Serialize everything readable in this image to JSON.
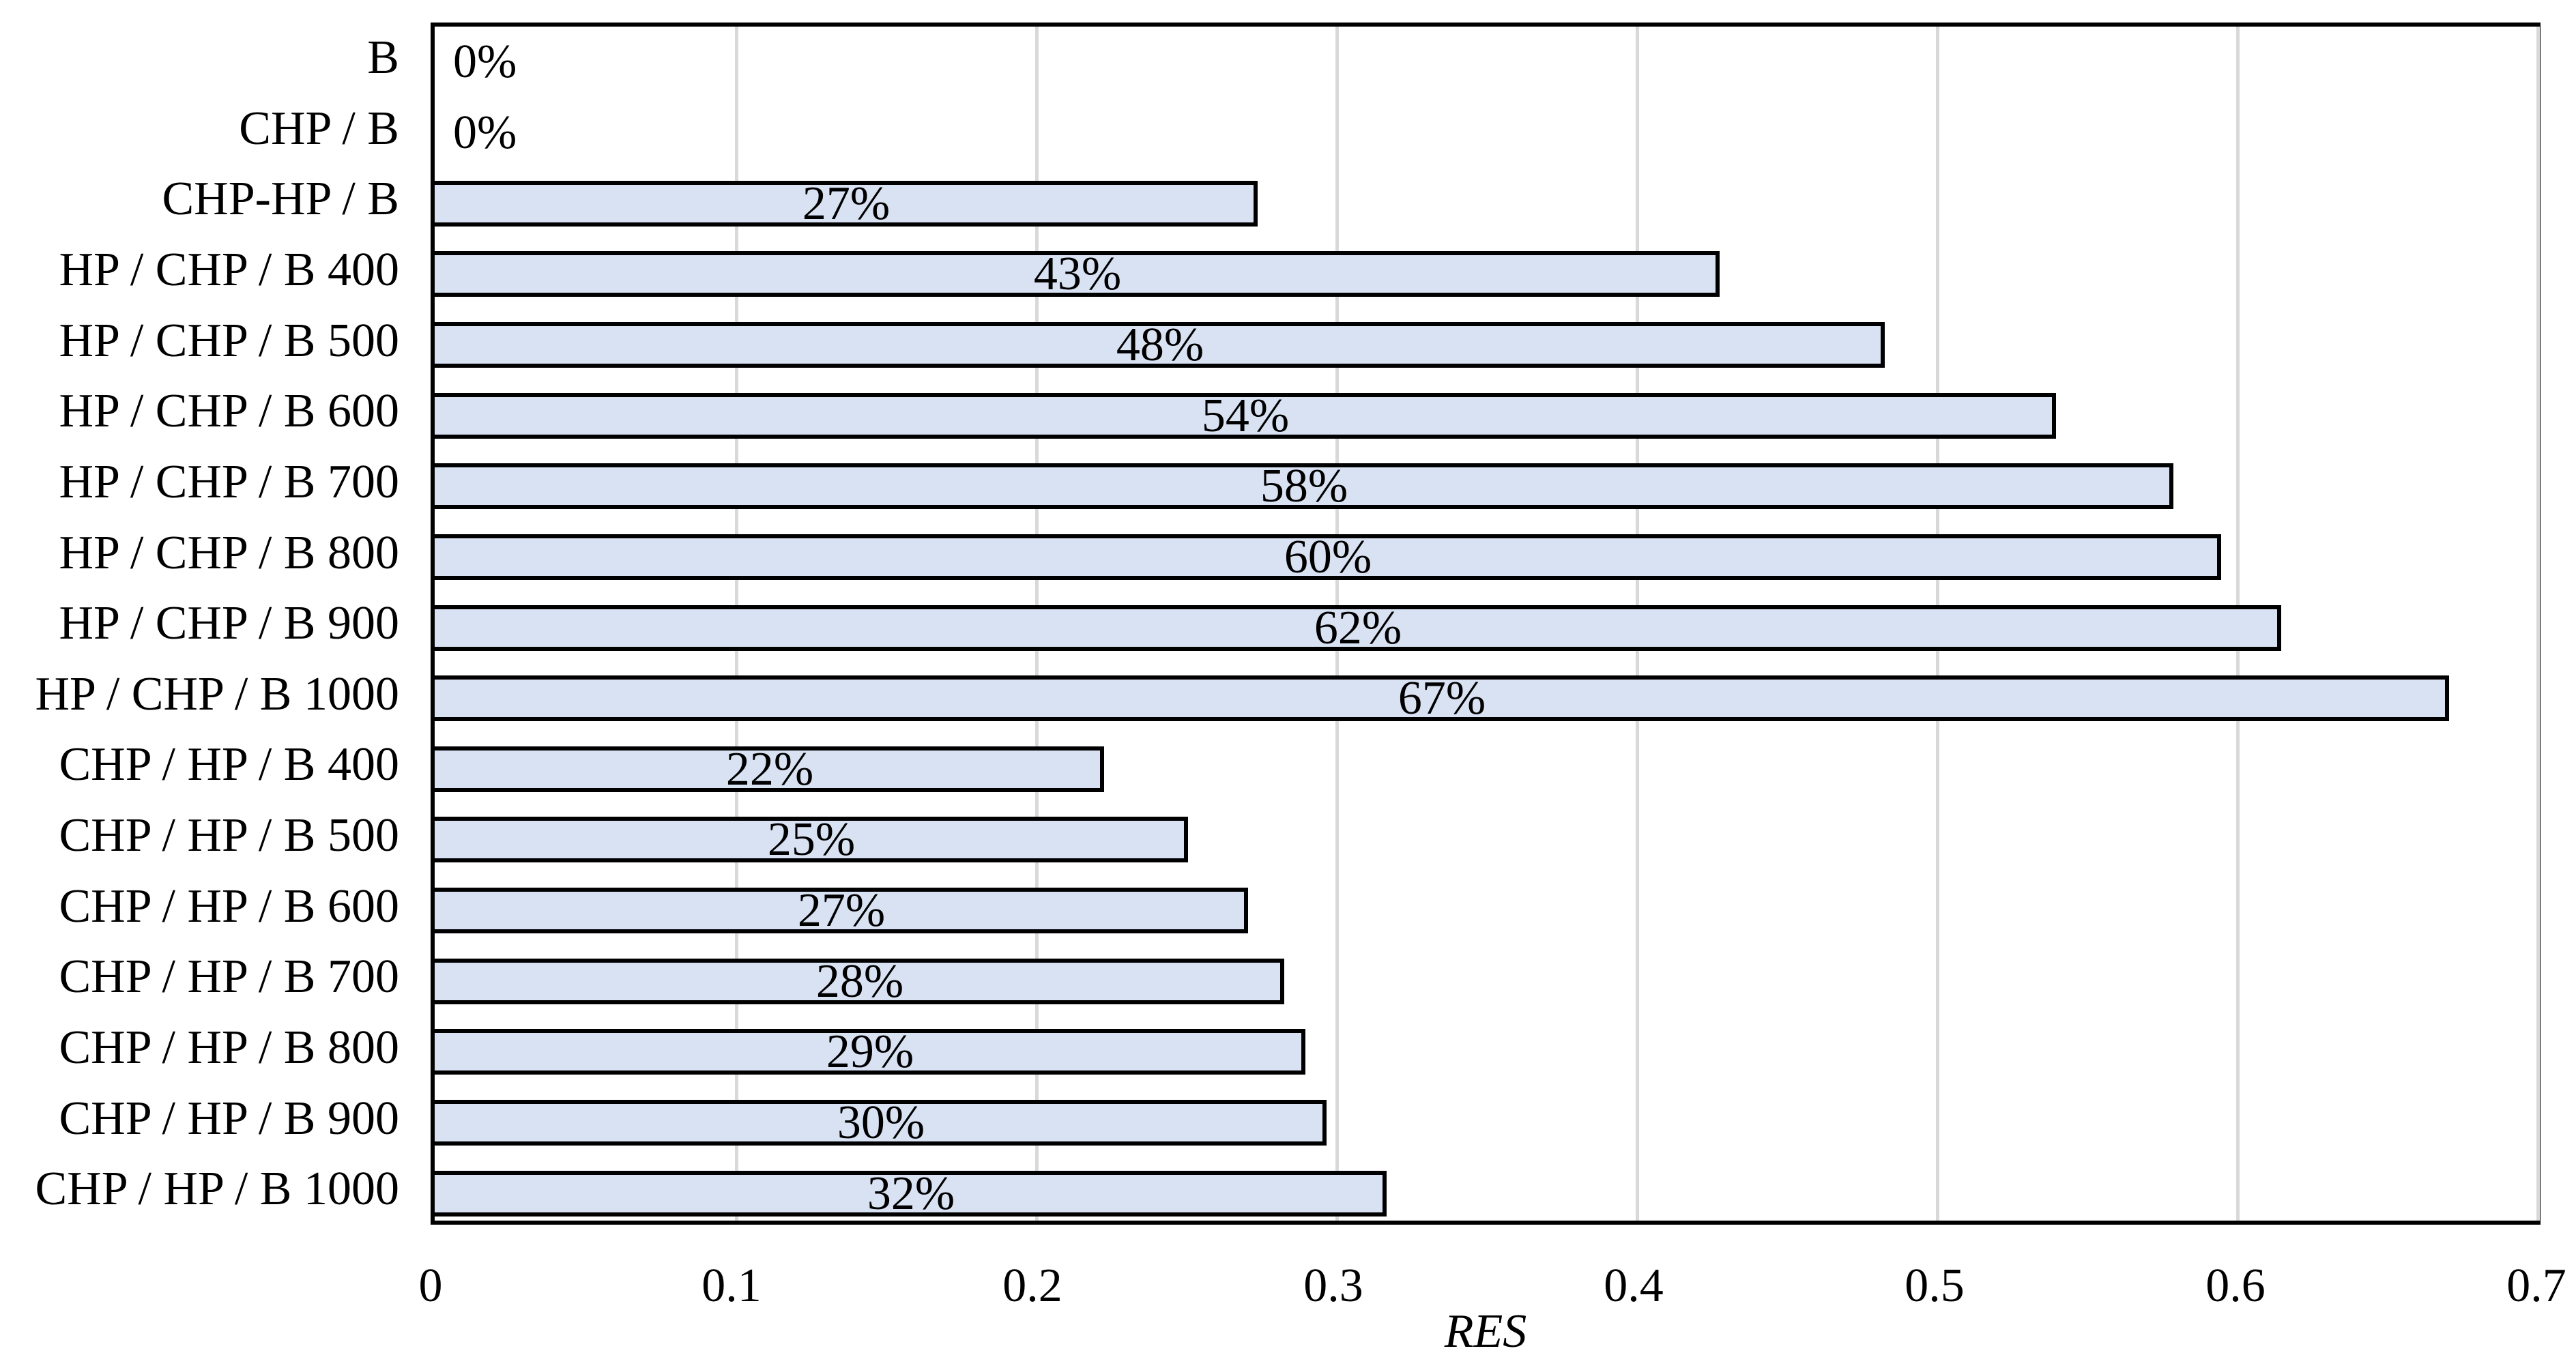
{
  "chart_data": {
    "type": "bar",
    "orientation": "horizontal",
    "title": "",
    "xlabel": "RES",
    "ylabel": "",
    "xlim": [
      0,
      0.7
    ],
    "xticks": [
      0,
      0.1,
      0.2,
      0.3,
      0.4,
      0.5,
      0.6,
      0.7
    ],
    "xtick_labels": [
      "0",
      "0.1",
      "0.2",
      "0.3",
      "0.4",
      "0.5",
      "0.6",
      "0.7"
    ],
    "grid": true,
    "legend": "none",
    "categories": [
      "B",
      "CHP / B",
      "CHP-HP / B",
      "HP / CHP / B 400",
      "HP / CHP / B 500",
      "HP / CHP / B 600",
      "HP / CHP / B 700",
      "HP / CHP / B 800",
      "HP / CHP / B 900",
      "HP / CHP / B 1000",
      "CHP / HP / B 400",
      "CHP / HP / B 500",
      "CHP / HP / B 600",
      "CHP / HP / B 700",
      "CHP / HP / B 800",
      "CHP / HP / B 900",
      "CHP / HP / B 1000"
    ],
    "values": [
      0,
      0,
      0.274,
      0.428,
      0.483,
      0.54,
      0.579,
      0.595,
      0.615,
      0.671,
      0.223,
      0.251,
      0.271,
      0.283,
      0.29,
      0.297,
      0.317
    ],
    "value_labels": [
      "0%",
      "0%",
      "27%",
      "43%",
      "48%",
      "54%",
      "58%",
      "60%",
      "62%",
      "67%",
      "22%",
      "25%",
      "27%",
      "28%",
      "29%",
      "30%",
      "32%"
    ],
    "colors": {
      "bar_fill": "#d9e2f3",
      "bar_border": "#000000",
      "gridline": "#d9d9d9",
      "axis": "#000000",
      "text": "#000000"
    }
  }
}
